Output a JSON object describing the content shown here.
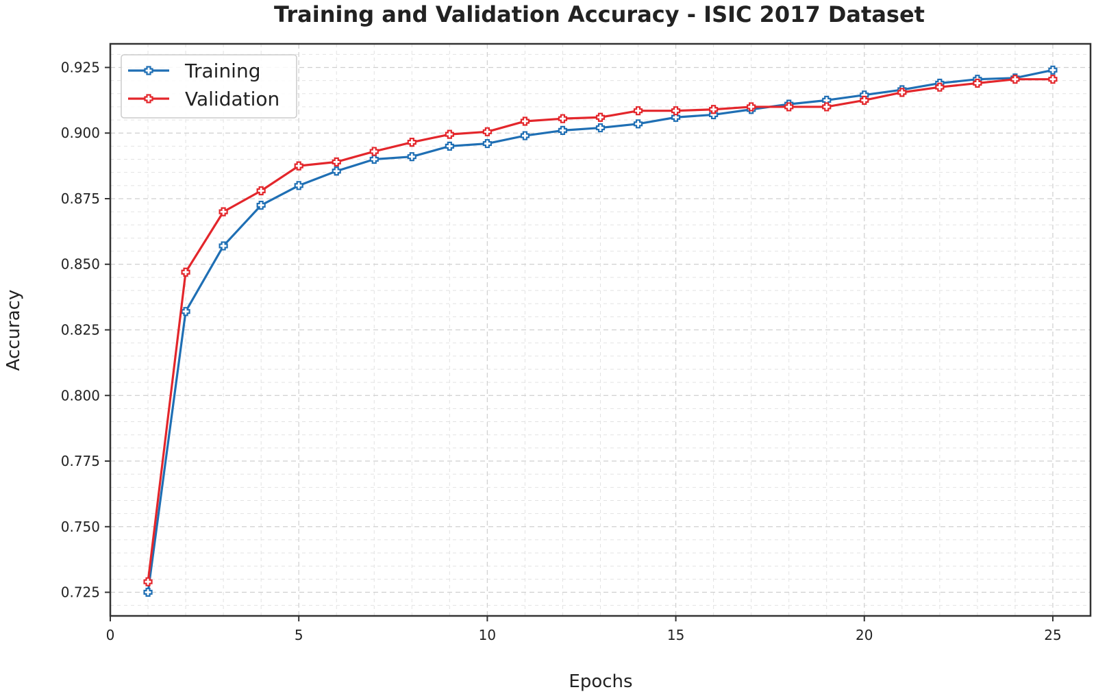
{
  "chart_data": {
    "type": "line",
    "title": "Training and Validation Accuracy - ISIC 2017 Dataset",
    "xlabel": "Epochs",
    "ylabel": "Accuracy",
    "xlim": [
      0,
      26
    ],
    "ylim": [
      0.716,
      0.934
    ],
    "xticks": [
      0,
      5,
      10,
      15,
      20,
      25
    ],
    "yticks": [
      0.725,
      0.75,
      0.775,
      0.8,
      0.825,
      0.85,
      0.875,
      0.9,
      0.925
    ],
    "ytick_labels": [
      "0.725",
      "0.750",
      "0.775",
      "0.800",
      "0.825",
      "0.850",
      "0.875",
      "0.900",
      "0.925"
    ],
    "grid": true,
    "legend_position": "upper-left",
    "x": [
      1,
      2,
      3,
      4,
      5,
      6,
      7,
      8,
      9,
      10,
      11,
      12,
      13,
      14,
      15,
      16,
      17,
      18,
      19,
      20,
      21,
      22,
      23,
      24,
      25
    ],
    "series": [
      {
        "name": "Training",
        "color": "#1f6fb4",
        "values": [
          0.725,
          0.832,
          0.857,
          0.8725,
          0.88,
          0.8855,
          0.89,
          0.891,
          0.895,
          0.896,
          0.899,
          0.901,
          0.902,
          0.9035,
          0.906,
          0.907,
          0.909,
          0.911,
          0.9125,
          0.9145,
          0.9165,
          0.919,
          0.9205,
          0.921,
          0.924
        ]
      },
      {
        "name": "Validation",
        "color": "#e3262b",
        "values": [
          0.729,
          0.847,
          0.87,
          0.878,
          0.8875,
          0.889,
          0.893,
          0.8965,
          0.8995,
          0.9005,
          0.9045,
          0.9055,
          0.906,
          0.9085,
          0.9085,
          0.909,
          0.91,
          0.91,
          0.91,
          0.9125,
          0.9155,
          0.9175,
          0.919,
          0.9205,
          0.9205
        ]
      }
    ]
  }
}
